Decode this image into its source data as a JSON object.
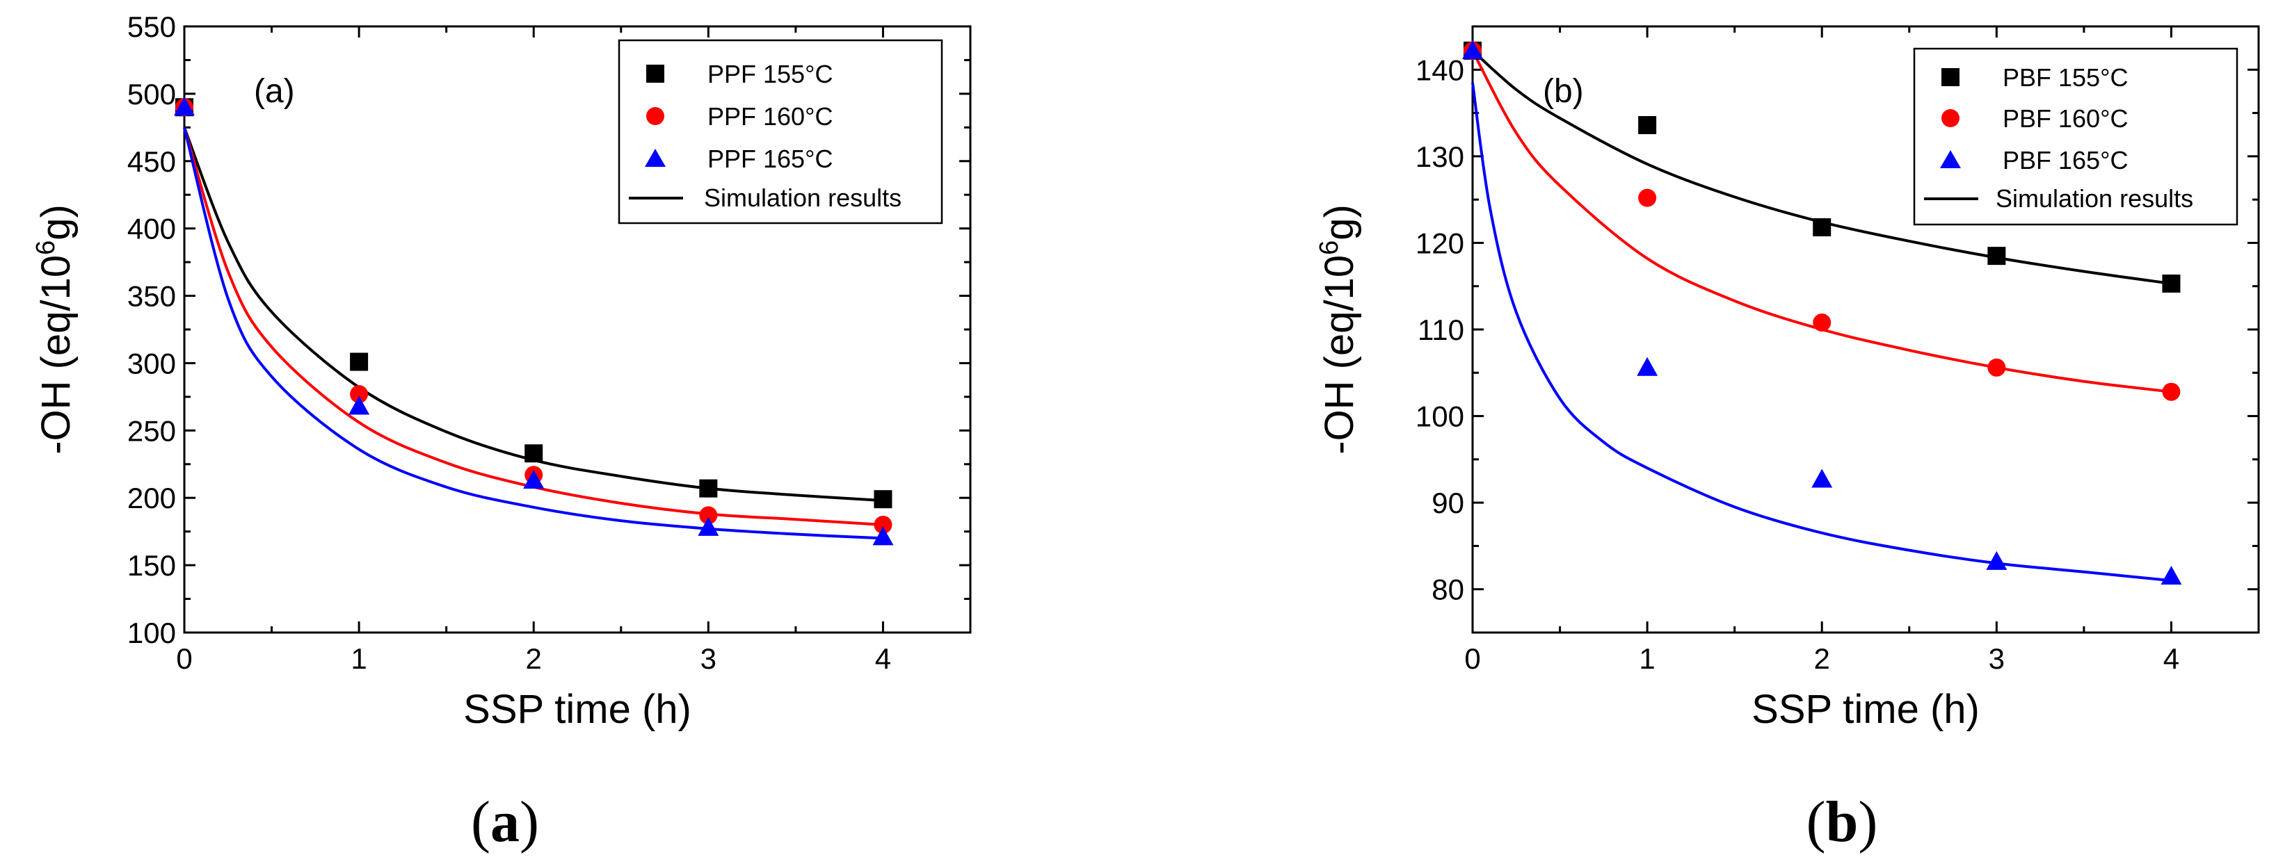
{
  "colors": {
    "black": "#000000",
    "red": "#ff0000",
    "blue": "#0000ff"
  },
  "chart_data": [
    {
      "type": "scatter",
      "panel_label": "(a)",
      "caption_open": "(",
      "caption_letter": "a",
      "caption_close": ")",
      "xlabel": "SSP time (h)",
      "ylabel_prefix": "-OH (eq/10",
      "ylabel_sup": "6",
      "ylabel_suffix": "g)",
      "xlim": [
        0,
        4.5
      ],
      "ylim": [
        100,
        550
      ],
      "xticks": [
        0,
        1,
        2,
        3,
        4
      ],
      "yticks": [
        100,
        150,
        200,
        250,
        300,
        350,
        400,
        450,
        500,
        550
      ],
      "legend_position": "top-right",
      "series": [
        {
          "name": "PPF 155°C",
          "marker": "square",
          "color": "#000000",
          "x": [
            0,
            1,
            2,
            3,
            4
          ],
          "y": [
            490,
            301,
            233,
            207,
            199
          ]
        },
        {
          "name": "PPF 160°C",
          "marker": "circle",
          "color": "#ff0000",
          "x": [
            0,
            1,
            2,
            3,
            4
          ],
          "y": [
            490,
            277,
            217,
            187,
            180
          ]
        },
        {
          "name": "PPF 165°C",
          "marker": "triangle",
          "color": "#0000ff",
          "x": [
            0,
            1,
            2,
            3,
            4
          ],
          "y": [
            490,
            268,
            213,
            178,
            171
          ]
        }
      ],
      "simulation": {
        "name": "Simulation results",
        "curves": [
          {
            "color": "#000000",
            "x": [
              0,
              0.25,
              0.5,
              1,
              1.5,
              2,
              2.5,
              3,
              3.5,
              4
            ],
            "y": [
              475,
              390,
              338,
              282,
              249,
              228,
              216,
              207,
              202,
              198
            ]
          },
          {
            "color": "#ff0000",
            "x": [
              0,
              0.25,
              0.5,
              1,
              1.5,
              2,
              2.5,
              3,
              3.5,
              4
            ],
            "y": [
              475,
              368,
              312,
              256,
              226,
              208,
              196,
              188,
              184,
              180
            ]
          },
          {
            "color": "#0000ff",
            "x": [
              0,
              0.25,
              0.5,
              1,
              1.5,
              2,
              2.5,
              3,
              3.5,
              4
            ],
            "y": [
              475,
              348,
              290,
              236,
              208,
              193,
              183,
              177,
              173,
              170
            ]
          }
        ]
      }
    },
    {
      "type": "scatter",
      "panel_label": "(b)",
      "caption_open": "(",
      "caption_letter": "b",
      "caption_close": ")",
      "xlabel": "SSP time (h)",
      "ylabel_prefix": "-OH (eq/10",
      "ylabel_sup": "6",
      "ylabel_suffix": "g)",
      "xlim": [
        0,
        4.5
      ],
      "ylim": [
        75,
        145
      ],
      "xticks": [
        0,
        1,
        2,
        3,
        4
      ],
      "yticks": [
        80,
        90,
        100,
        110,
        120,
        130,
        140
      ],
      "legend_position": "top-right",
      "series": [
        {
          "name": "PBF 155°C",
          "marker": "square",
          "color": "#000000",
          "x": [
            0,
            1,
            2,
            3,
            4
          ],
          "y": [
            142.2,
            133.6,
            121.8,
            118.5,
            115.3
          ]
        },
        {
          "name": "PBF 160°C",
          "marker": "circle",
          "color": "#ff0000",
          "x": [
            0,
            1,
            2,
            3,
            4
          ],
          "y": [
            142.2,
            125.2,
            110.8,
            105.6,
            102.8
          ]
        },
        {
          "name": "PBF 165°C",
          "marker": "triangle",
          "color": "#0000ff",
          "x": [
            0,
            1,
            2,
            3,
            4
          ],
          "y": [
            142.2,
            105.6,
            92.7,
            83.2,
            81.5
          ]
        }
      ],
      "simulation": {
        "name": "Simulation results",
        "curves": [
          {
            "color": "#000000",
            "x": [
              0,
              0.25,
              0.5,
              1,
              1.5,
              2,
              2.5,
              3,
              3.5,
              4
            ],
            "y": [
              142.2,
              137.7,
              134.4,
              129.1,
              125.3,
              122.4,
              120.2,
              118.3,
              116.7,
              115.3
            ]
          },
          {
            "color": "#ff0000",
            "x": [
              0,
              0.25,
              0.5,
              1,
              1.5,
              2,
              2.5,
              3,
              3.5,
              4
            ],
            "y": [
              142.2,
              132.7,
              126.6,
              118.2,
              113.3,
              110.0,
              107.6,
              105.6,
              104.0,
              102.8
            ]
          },
          {
            "color": "#0000ff",
            "x": [
              0,
              0.1,
              0.25,
              0.5,
              0.75,
              1,
              1.5,
              2,
              2.5,
              3,
              3.5,
              4
            ],
            "y": [
              138.5,
              124.0,
              112.0,
              102.0,
              97.0,
              94.0,
              89.5,
              86.5,
              84.5,
              83.0,
              82.0,
              81.0
            ]
          }
        ]
      }
    }
  ]
}
